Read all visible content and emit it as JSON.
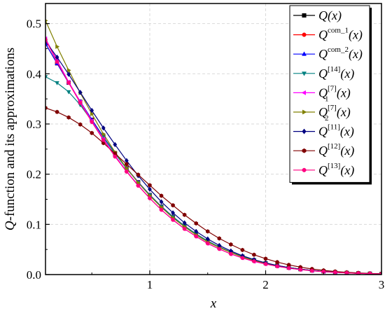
{
  "chart_data": {
    "type": "line",
    "xlabel": "x",
    "ylabel_italic": "Q",
    "ylabel_rest": "-function and its approximations",
    "xlim": [
      0.1,
      3.0
    ],
    "ylim": [
      0.0,
      0.54
    ],
    "x_ticks": [
      1,
      2,
      3
    ],
    "x_tick_labels": [
      "1",
      "2",
      "3"
    ],
    "y_ticks": [
      0.0,
      0.1,
      0.2,
      0.3,
      0.4,
      0.5
    ],
    "y_tick_labels": [
      "0.0",
      "0.1",
      "0.2",
      "0.3",
      "0.4",
      "0.5"
    ],
    "grid": true,
    "legend_position": "top-right",
    "x": [
      0.1,
      0.2,
      0.3,
      0.4,
      0.5,
      0.6,
      0.7,
      0.8,
      0.9,
      1.0,
      1.1,
      1.2,
      1.3,
      1.4,
      1.5,
      1.6,
      1.7,
      1.8,
      1.9,
      2.0,
      2.1,
      2.2,
      2.3,
      2.4,
      2.5,
      2.6,
      2.7,
      2.8,
      2.9,
      3.0
    ],
    "series": [
      {
        "label_base": "Q",
        "label_sup": "",
        "label_sub": "",
        "label_arg": "(x)",
        "color": "#000000",
        "marker": "square",
        "values": [
          0.4602,
          0.4207,
          0.3821,
          0.3446,
          0.3085,
          0.2743,
          0.242,
          0.2119,
          0.1841,
          0.1587,
          0.1357,
          0.1151,
          0.0968,
          0.0808,
          0.0668,
          0.0548,
          0.0446,
          0.0359,
          0.0287,
          0.0228,
          0.0179,
          0.0139,
          0.0107,
          0.0082,
          0.0062,
          0.0047,
          0.0035,
          0.0026,
          0.0019,
          0.0013
        ]
      },
      {
        "label_base": "Q",
        "label_sup": "com_1",
        "label_sub": "",
        "label_arg": "(x)",
        "color": "#ff0000",
        "marker": "circle",
        "values": [
          0.4602,
          0.4207,
          0.3821,
          0.3446,
          0.3085,
          0.2743,
          0.242,
          0.2119,
          0.1841,
          0.1587,
          0.1357,
          0.1151,
          0.0968,
          0.0808,
          0.0668,
          0.0548,
          0.0446,
          0.0359,
          0.0287,
          0.0228,
          0.0179,
          0.0139,
          0.0107,
          0.0082,
          0.0062,
          0.0047,
          0.0035,
          0.0026,
          0.0019,
          0.0013
        ]
      },
      {
        "label_base": "Q",
        "label_sup": "com_2",
        "label_sub": "",
        "label_arg": "(x)",
        "color": "#0000ff",
        "marker": "triangle-up",
        "values": [
          0.4602,
          0.4207,
          0.3821,
          0.3446,
          0.3085,
          0.2743,
          0.242,
          0.2119,
          0.1841,
          0.1587,
          0.1357,
          0.1151,
          0.0968,
          0.0808,
          0.0668,
          0.0548,
          0.0446,
          0.0359,
          0.0287,
          0.0228,
          0.0179,
          0.0139,
          0.0107,
          0.0082,
          0.0062,
          0.0047,
          0.0035,
          0.0026,
          0.0019,
          0.0013
        ]
      },
      {
        "label_base": "Q",
        "label_sup": "[14]",
        "label_sub": "",
        "label_arg": "(x)",
        "color": "#008080",
        "marker": "triangle-down",
        "values": [
          0.394,
          0.382,
          0.364,
          0.338,
          0.306,
          0.273,
          0.241,
          0.211,
          0.1835,
          0.1583,
          0.1354,
          0.1149,
          0.0967,
          0.0807,
          0.0668,
          0.0548,
          0.0446,
          0.0359,
          0.0287,
          0.0228,
          0.0179,
          0.0139,
          0.0107,
          0.0082,
          0.0062,
          0.0047,
          0.0035,
          0.0026,
          0.0019,
          0.0013
        ]
      },
      {
        "label_base": "Q",
        "label_sup": "[7]",
        "label_sub": "1",
        "label_arg": "(x)",
        "color": "#ff00ff",
        "marker": "triangle-left",
        "values": [
          0.47,
          0.427,
          0.384,
          0.344,
          0.306,
          0.27,
          0.237,
          0.206,
          0.178,
          0.152,
          0.129,
          0.109,
          0.091,
          0.076,
          0.062,
          0.051,
          0.041,
          0.033,
          0.026,
          0.021,
          0.0165,
          0.0128,
          0.0099,
          0.0076,
          0.0058,
          0.0044,
          0.0033,
          0.0024,
          0.0018,
          0.0013
        ]
      },
      {
        "label_base": "Q",
        "label_sup": "[7]",
        "label_sub": "2",
        "label_arg": "(x)",
        "color": "#808000",
        "marker": "triangle-right",
        "values": [
          0.506,
          0.454,
          0.407,
          0.362,
          0.32,
          0.28,
          0.244,
          0.212,
          0.183,
          0.157,
          0.134,
          0.113,
          0.095,
          0.079,
          0.065,
          0.054,
          0.044,
          0.035,
          0.028,
          0.0225,
          0.0177,
          0.0138,
          0.0106,
          0.0081,
          0.0061,
          0.0046,
          0.0034,
          0.0025,
          0.0019,
          0.0013
        ]
      },
      {
        "label_base": "Q",
        "label_sup": "[11]",
        "label_sub": "",
        "label_arg": "(x)",
        "color": "#000080",
        "marker": "diamond",
        "values": [
          0.465,
          0.433,
          0.399,
          0.363,
          0.327,
          0.292,
          0.259,
          0.227,
          0.197,
          0.17,
          0.145,
          0.123,
          0.103,
          0.086,
          0.071,
          0.058,
          0.047,
          0.0375,
          0.0297,
          0.0233,
          0.0181,
          0.014,
          0.0107,
          0.0082,
          0.0062,
          0.0047,
          0.0035,
          0.0026,
          0.0019,
          0.0013
        ]
      },
      {
        "label_base": "Q",
        "label_sup": "[12]",
        "label_sub": "",
        "label_arg": "(x)",
        "color": "#800000",
        "marker": "hexagon",
        "values": [
          0.332,
          0.324,
          0.313,
          0.299,
          0.282,
          0.262,
          0.241,
          0.22,
          0.199,
          0.178,
          0.157,
          0.138,
          0.119,
          0.102,
          0.086,
          0.072,
          0.06,
          0.049,
          0.0395,
          0.0316,
          0.0248,
          0.0193,
          0.0148,
          0.0112,
          0.0084,
          0.0062,
          0.0045,
          0.0033,
          0.0023,
          0.0016
        ]
      },
      {
        "label_base": "Q",
        "label_sup": "[13]",
        "label_sub": "",
        "label_arg": "(x)",
        "color": "#ff0080",
        "marker": "circle",
        "values": [
          0.468,
          0.424,
          0.382,
          0.342,
          0.304,
          0.268,
          0.235,
          0.205,
          0.177,
          0.152,
          0.129,
          0.109,
          0.091,
          0.076,
          0.062,
          0.051,
          0.041,
          0.033,
          0.0265,
          0.021,
          0.0165,
          0.0128,
          0.0099,
          0.0076,
          0.0058,
          0.0044,
          0.0033,
          0.0024,
          0.0018,
          0.0013
        ]
      }
    ]
  }
}
